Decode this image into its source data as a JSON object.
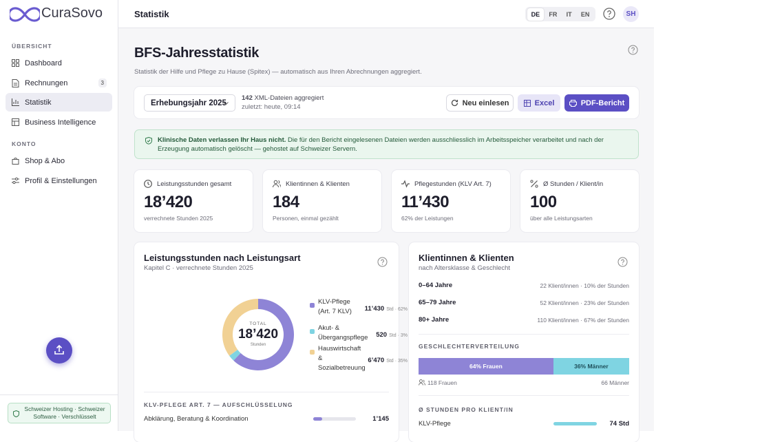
{
  "brand": "CuraSovo",
  "sidebar": {
    "sections": [
      {
        "title": "ÜBERSICHT",
        "items": [
          {
            "label": "Dashboard"
          },
          {
            "label": "Rechnungen",
            "badge": 3
          },
          {
            "label": "Statistik",
            "active": true
          },
          {
            "label": "Business Intelligence"
          }
        ]
      },
      {
        "title": "KONTO",
        "items": [
          {
            "label": "Shop & Abo"
          },
          {
            "label": "Profil & Einstellungen"
          }
        ]
      }
    ],
    "footer": "Schweizer Hosting · Schweizer Software · Verschlüsselt"
  },
  "header": {
    "title": "Statistik",
    "languages": [
      "DE",
      "FR",
      "IT",
      "EN"
    ],
    "active_language": "DE",
    "avatar": "SH"
  },
  "page": {
    "title": "BFS-Jahresstatistik",
    "subtitle": "Statistik der Hilfe und Pflege zu Hause (Spitex) — automatisch aus Ihren Abrechnungen aggregiert."
  },
  "toolbar": {
    "year": "Erhebungsjahr 2025",
    "files_count": 142,
    "files_text": "XML-Dateien aggregiert",
    "updated": "zuletzt: heute, 09:14",
    "buttons": [
      "Neu einlesen",
      "Excel",
      "PDF-Bericht"
    ]
  },
  "notice": {
    "strong": "Klinische Daten verlassen Ihr Haus nicht.",
    "text": "Die für den Bericht eingelesenen Dateien werden ausschliesslich im Arbeitsspeicher verarbeitet und nach der Erzeugung automatisch gelöscht — gehostet auf Schweizer Servern."
  },
  "kpis": [
    {
      "label": "Leistungsstunden gesamt",
      "value": "18’420",
      "note": "verrechnete Stunden 2025"
    },
    {
      "label": "Klientinnen & Klienten",
      "value": "184",
      "note": "Personen, einmal gezählt"
    },
    {
      "label": "Pflegestunden (KLV Art. 7)",
      "value": "11’430",
      "note": "62% der Leistungen"
    },
    {
      "label": "Ø Stunden / Klient/in",
      "value": "100",
      "note": "über alle Leistungsarten"
    }
  ],
  "hours_panel": {
    "title": "Leistungsstunden nach Leistungsart",
    "subtitle": "Kapitel C · verrechnete Stunden 2025",
    "donut": {
      "center_label": "TOTAL",
      "center_value": "18’420",
      "center_unit": "Stunden",
      "unit": "Std",
      "items": [
        {
          "label": "KLV-Pflege (Art. 7 KLV)",
          "value": 11430,
          "value_label": "11’430",
          "share": "· 62%",
          "color": "#8e84d6"
        },
        {
          "label": "Akut- & Übergangspflege",
          "value": 520,
          "value_label": "520",
          "share": "· 3%",
          "color": "#7fd4e2"
        },
        {
          "label": "Hauswirtschaft & Sozialbetreuung",
          "value": 6470,
          "value_label": "6’470",
          "share": "· 35%",
          "color": "#f1d194"
        }
      ]
    },
    "breakdown": {
      "title": "KLV-PFLEGE ART. 7 — AUFSCHLÜSSELUNG",
      "rows": [
        {
          "label": "Abklärung, Beratung & Koordination",
          "value": 1145,
          "value_label": "1’145"
        }
      ]
    }
  },
  "clients_panel": {
    "title": "Klientinnen & Klienten",
    "subtitle": "nach Altersklasse & Geschlecht",
    "age_groups": [
      {
        "label": "0–64 Jahre",
        "detail": "22 Klient/innen · 10% der Stunden"
      },
      {
        "label": "65–79 Jahre",
        "detail": "52 Klient/innen · 23% der Stunden"
      },
      {
        "label": "80+ Jahre",
        "detail": "110 Klient/innen · 67% der Stunden"
      }
    ],
    "gender": {
      "title": "GESCHLECHTERVERTEILUNG",
      "values": [
        64,
        36
      ],
      "labels": [
        "64% Frauen",
        "36% Männer"
      ],
      "colors": [
        "#8e84d6",
        "#7fd4e2"
      ],
      "counts": [
        "118 Frauen",
        "66 Männer"
      ]
    },
    "avg": {
      "title": "Ø STUNDEN PRO KLIENT/IN",
      "rows": [
        {
          "label": "KLV-Pflege",
          "value": 74,
          "value_label": "74 Std"
        }
      ]
    }
  }
}
